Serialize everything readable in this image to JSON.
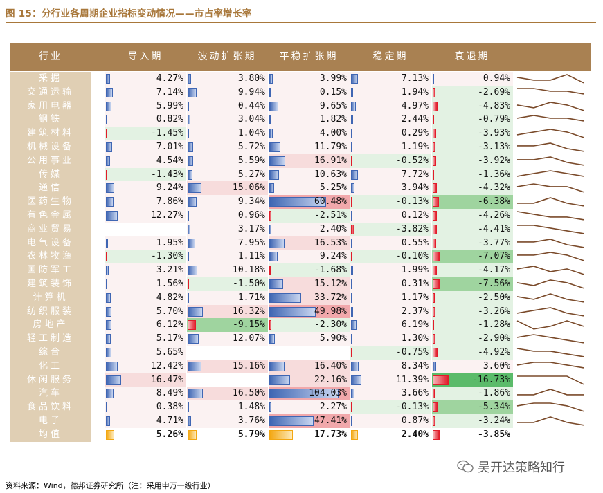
{
  "title": "图 15：分行业各周期企业指标变动情况——市占率增长率",
  "headers": [
    "行业",
    "导入期",
    "波动扩张期",
    "平稳扩张期",
    "稳定期",
    "衰退期"
  ],
  "rows": [
    {
      "name": "采掘",
      "v": [
        "4.27%",
        "3.80%",
        "3.99%",
        "7.13%",
        "0.94%"
      ],
      "n": [
        4.27,
        3.8,
        3.99,
        7.13,
        0.94
      ],
      "trend": [
        2,
        3,
        3,
        1,
        4
      ]
    },
    {
      "name": "交通运输",
      "v": [
        "7.14%",
        "9.94%",
        "0.15%",
        "1.94%",
        "-2.69%"
      ],
      "n": [
        7.14,
        9.94,
        0.15,
        1.94,
        -2.69
      ],
      "trend": [
        1,
        1,
        2,
        2,
        3
      ]
    },
    {
      "name": "家用电器",
      "v": [
        "5.99%",
        "0.44%",
        "9.65%",
        "4.97%",
        "-4.83%"
      ],
      "n": [
        5.99,
        0.44,
        9.65,
        4.97,
        -4.83
      ],
      "trend": [
        2,
        3,
        1,
        2,
        4
      ]
    },
    {
      "name": "钢铁",
      "v": [
        "0.82%",
        "3.04%",
        "1.82%",
        "2.44%",
        "-0.79%"
      ],
      "n": [
        0.82,
        3.04,
        1.82,
        2.44,
        -0.79
      ],
      "trend": [
        2,
        1,
        2,
        2,
        3
      ]
    },
    {
      "name": "建筑材料",
      "v": [
        "-1.45%",
        "1.04%",
        "4.00%",
        "0.29%",
        "-3.93%"
      ],
      "n": [
        -1.45,
        1.04,
        4.0,
        0.29,
        -3.93
      ],
      "trend": [
        3,
        2,
        1,
        2,
        4
      ]
    },
    {
      "name": "机械设备",
      "v": [
        "7.01%",
        "5.72%",
        "11.79%",
        "1.19%",
        "-3.13%"
      ],
      "n": [
        7.01,
        5.72,
        11.79,
        1.19,
        -3.13
      ],
      "trend": [
        2,
        2,
        1,
        3,
        4
      ]
    },
    {
      "name": "公用事业",
      "v": [
        "4.54%",
        "5.59%",
        "16.91%",
        "-0.52%",
        "-3.92%"
      ],
      "n": [
        4.54,
        5.59,
        16.91,
        -0.52,
        -3.92
      ],
      "trend": [
        2,
        2,
        1,
        3,
        4
      ]
    },
    {
      "name": "传媒",
      "v": [
        "-1.43%",
        "5.27%",
        "10.63%",
        "7.72%",
        "-1.36%"
      ],
      "n": [
        -1.43,
        5.27,
        10.63,
        7.72,
        -1.36
      ],
      "trend": [
        3,
        2,
        1,
        2,
        3
      ]
    },
    {
      "name": "通信",
      "v": [
        "9.24%",
        "15.06%",
        "5.25%",
        "3.94%",
        "-4.32%"
      ],
      "n": [
        9.24,
        15.06,
        5.25,
        3.94,
        -4.32
      ],
      "trend": [
        2,
        1,
        2,
        2,
        4
      ]
    },
    {
      "name": "医药生物",
      "v": [
        "7.86%",
        "9.34%",
        "60.48%",
        "-0.13%",
        "-6.38%"
      ],
      "n": [
        7.86,
        9.34,
        60.48,
        -0.13,
        -6.38
      ],
      "trend": [
        3,
        3,
        1,
        3,
        4
      ]
    },
    {
      "name": "有色金属",
      "v": [
        "12.27%",
        "0.96%",
        "-2.51%",
        "0.12%",
        "-4.26%"
      ],
      "n": [
        12.27,
        0.96,
        -2.51,
        0.12,
        -4.26
      ],
      "trend": [
        1,
        2,
        3,
        3,
        4
      ]
    },
    {
      "name": "商业贸易",
      "v": [
        "",
        "3.17%",
        "2.40%",
        "-3.82%",
        "-4.41%"
      ],
      "n": [
        null,
        3.17,
        2.4,
        -3.82,
        -4.41
      ],
      "trend": [
        1,
        1,
        2,
        3,
        4
      ]
    },
    {
      "name": "电气设备",
      "v": [
        "1.95%",
        "7.95%",
        "16.53%",
        "0.55%",
        "-3.77%"
      ],
      "n": [
        1.95,
        7.95,
        16.53,
        0.55,
        -3.77
      ],
      "trend": [
        2,
        2,
        1,
        3,
        4
      ]
    },
    {
      "name": "农林牧渔",
      "v": [
        "-1.30%",
        "1.11%",
        "9.24%",
        "-0.10%",
        "-7.07%"
      ],
      "n": [
        -1.3,
        1.11,
        9.24,
        -0.1,
        -7.07
      ],
      "trend": [
        2,
        2,
        1,
        2,
        4
      ]
    },
    {
      "name": "国防军工",
      "v": [
        "3.21%",
        "10.18%",
        "-1.68%",
        "1.99%",
        "-4.17%"
      ],
      "n": [
        3.21,
        10.18,
        -1.68,
        1.99,
        -4.17
      ],
      "trend": [
        2,
        1,
        3,
        2,
        4
      ]
    },
    {
      "name": "建筑装饰",
      "v": [
        "1.56%",
        "-1.50%",
        "15.12%",
        "0.31%",
        "-7.56%"
      ],
      "n": [
        1.56,
        -1.5,
        15.12,
        0.31,
        -7.56
      ],
      "trend": [
        2,
        3,
        1,
        2,
        4
      ]
    },
    {
      "name": "计算机",
      "v": [
        "4.82%",
        "1.71%",
        "33.72%",
        "1.17%",
        "-2.50%"
      ],
      "n": [
        4.82,
        1.71,
        33.72,
        1.17,
        -2.5
      ],
      "trend": [
        2,
        3,
        1,
        3,
        4
      ]
    },
    {
      "name": "纺织服装",
      "v": [
        "5.70%",
        "16.32%",
        "49.98%",
        "2.37%",
        "-3.26%"
      ],
      "n": [
        5.7,
        16.32,
        49.98,
        2.37,
        -3.26
      ],
      "trend": [
        3,
        2,
        1,
        3,
        4
      ]
    },
    {
      "name": "房地产",
      "v": [
        "6.12%",
        "-9.15%",
        "-2.30%",
        "6.19%",
        "-1.28%"
      ],
      "n": [
        6.12,
        -9.15,
        -2.3,
        6.19,
        -1.28
      ],
      "trend": [
        1,
        4,
        3,
        1,
        3
      ]
    },
    {
      "name": "轻工制造",
      "v": [
        "5.17%",
        "12.07%",
        "5.90%",
        "1.30%",
        "-2.90%"
      ],
      "n": [
        5.17,
        12.07,
        5.9,
        1.3,
        -2.9
      ],
      "trend": [
        2,
        1,
        2,
        3,
        4
      ]
    },
    {
      "name": "综合",
      "v": [
        "5.65%",
        "",
        "",
        "-0.75%",
        "-4.92%"
      ],
      "n": [
        5.65,
        null,
        null,
        -0.75,
        -4.92
      ],
      "trend": [
        1,
        2,
        2,
        3,
        4
      ]
    },
    {
      "name": "化工",
      "v": [
        "12.42%",
        "15.16%",
        "16.40%",
        "8.34%",
        "3.60%"
      ],
      "n": [
        12.42,
        15.16,
        16.4,
        8.34,
        3.6
      ],
      "trend": [
        2,
        1,
        1,
        2,
        3
      ]
    },
    {
      "name": "休闲服务",
      "v": [
        "16.47%",
        "",
        "22.16%",
        "11.39%",
        "-16.73%"
      ],
      "n": [
        16.47,
        null,
        22.16,
        11.39,
        -16.73
      ],
      "trend": [
        1,
        1,
        1,
        1,
        4
      ]
    },
    {
      "name": "汽车",
      "v": [
        "8.49%",
        "16.50%",
        "104.03%",
        "3.66%",
        "-1.86%"
      ],
      "n": [
        8.49,
        16.5,
        104.03,
        3.66,
        -1.86
      ],
      "trend": [
        3,
        3,
        1,
        3,
        3
      ]
    },
    {
      "name": "食品饮料",
      "v": [
        "0.38%",
        "1.48%",
        "2.27%",
        "-0.13%",
        "-5.34%"
      ],
      "n": [
        0.38,
        1.48,
        2.27,
        -0.13,
        -5.34
      ],
      "trend": [
        2,
        1,
        1,
        2,
        4
      ]
    },
    {
      "name": "电子",
      "v": [
        "4.71%",
        "3.76%",
        "47.41%",
        "0.87%",
        "-3.24%"
      ],
      "n": [
        4.71,
        3.76,
        47.41,
        0.87,
        -3.24
      ],
      "trend": [
        3,
        3,
        1,
        3,
        4
      ]
    },
    {
      "name": "均值",
      "v": [
        "5.26%",
        "5.79%",
        "17.73%",
        "2.40%",
        "-3.85%"
      ],
      "n": [
        5.26,
        5.79,
        17.73,
        2.4,
        -3.85
      ],
      "avg": true
    }
  ],
  "source": "资料来源：Wind，德邦证券研究所（注：采用申万一级行业）",
  "watermark": "吴开达策略知行",
  "colors": {
    "header": "#a98152",
    "name_bg": "#e0cfb4",
    "pos": "#3f66b3",
    "neg": "#e11c2a",
    "avg": "#f3a712",
    "title": "#a8773a",
    "spark": "#7a4a2a"
  }
}
